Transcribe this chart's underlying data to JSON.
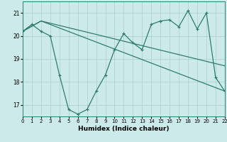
{
  "xlabel": "Humidex (Indice chaleur)",
  "bg_color": "#cceaea",
  "grid_color": "#aacece",
  "line_color": "#2e7d6e",
  "xlim": [
    0,
    22
  ],
  "ylim": [
    16.5,
    21.5
  ],
  "yticks": [
    17,
    18,
    19,
    20,
    21
  ],
  "xticks": [
    0,
    1,
    2,
    3,
    4,
    5,
    6,
    7,
    8,
    9,
    10,
    11,
    12,
    13,
    14,
    15,
    16,
    17,
    18,
    19,
    20,
    21,
    22
  ],
  "line1_x": [
    0,
    1,
    2,
    3,
    4,
    5,
    6,
    7,
    8,
    9,
    10,
    11,
    12,
    13,
    14,
    15,
    16,
    17,
    18,
    19,
    20,
    21,
    22
  ],
  "line1_y": [
    20.2,
    20.5,
    20.2,
    20.0,
    18.3,
    16.8,
    16.6,
    16.8,
    17.6,
    18.3,
    19.4,
    20.1,
    19.7,
    19.4,
    20.5,
    20.65,
    20.7,
    20.4,
    21.1,
    20.3,
    21.0,
    18.2,
    17.6
  ],
  "line2_x": [
    0,
    2,
    22
  ],
  "line2_y": [
    20.2,
    20.65,
    18.7
  ],
  "line3_x": [
    0,
    2,
    22
  ],
  "line3_y": [
    20.2,
    20.65,
    17.6
  ]
}
